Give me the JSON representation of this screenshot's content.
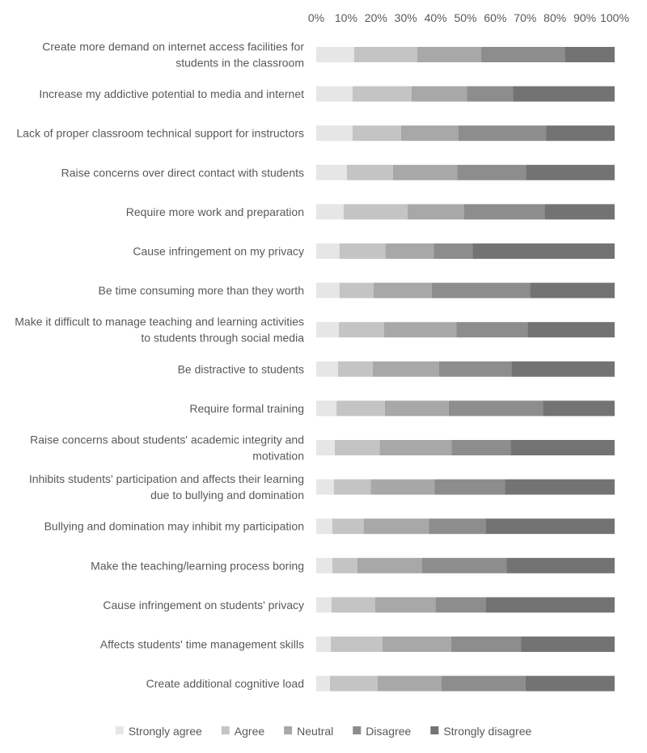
{
  "chart_data": {
    "type": "bar",
    "orientation": "horizontal",
    "stacked": "percent",
    "title": "",
    "xlabel": "",
    "ylabel": "",
    "xlim": [
      0,
      100
    ],
    "x_ticks": [
      "0%",
      "10%",
      "20%",
      "30%",
      "40%",
      "50%",
      "60%",
      "70%",
      "80%",
      "90%",
      "100%"
    ],
    "x_axis_position": "top",
    "grid": false,
    "legend_position": "bottom",
    "categories": [
      "Create more demand on internet access facilities for students in the classroom",
      "Increase my addictive potential to media and internet",
      "Lack of proper classroom technical support for instructors",
      "Raise concerns over direct contact with students",
      "Require more work and preparation",
      "Cause infringement on my privacy",
      "Be time consuming more than they worth",
      "Make it difficult to manage teaching and learning activities to students through social media",
      "Be distractive to students",
      "Require formal training",
      "Raise concerns about students' academic integrity and motivation",
      "Inhibits students' participation and affects their learning due to bullying and domination",
      "Bullying and domination may inhibit my participation",
      "Make the teaching/learning process boring",
      "Cause infringement on students' privacy",
      "Affects students' time management skills",
      "Create additional cognitive load"
    ],
    "series": [
      {
        "name": "Strongly agree",
        "color": "#e6e6e6",
        "values": [
          12.7,
          12.2,
          12.2,
          10.3,
          9.2,
          7.8,
          7.8,
          7.6,
          7.3,
          6.8,
          6.2,
          5.9,
          5.4,
          5.4,
          5.1,
          4.9,
          4.6
        ]
      },
      {
        "name": "Agree",
        "color": "#c4c4c4",
        "values": [
          21.1,
          19.7,
          16.2,
          15.4,
          21.4,
          15.4,
          11.4,
          15.1,
          11.6,
          16.2,
          15.1,
          12.4,
          10.5,
          8.4,
          14.6,
          17.3,
          16.0
        ]
      },
      {
        "name": "Neutral",
        "color": "#a8a8a8",
        "values": [
          21.4,
          18.6,
          19.2,
          21.6,
          18.9,
          16.2,
          19.5,
          24.3,
          22.2,
          21.4,
          24.1,
          21.4,
          21.9,
          21.6,
          20.3,
          23.0,
          21.3
        ]
      },
      {
        "name": "Disagree",
        "color": "#8d8d8d",
        "values": [
          28.1,
          15.4,
          29.5,
          23.0,
          27.0,
          13.0,
          33.0,
          23.8,
          24.3,
          31.6,
          19.7,
          23.5,
          19.0,
          28.4,
          16.8,
          23.5,
          28.2
        ]
      },
      {
        "name": "Strongly disagree",
        "color": "#737373",
        "values": [
          16.7,
          34.1,
          22.9,
          29.7,
          23.5,
          47.6,
          28.3,
          29.2,
          34.6,
          24.0,
          34.9,
          36.8,
          43.2,
          36.2,
          43.2,
          31.3,
          29.9
        ]
      }
    ]
  }
}
